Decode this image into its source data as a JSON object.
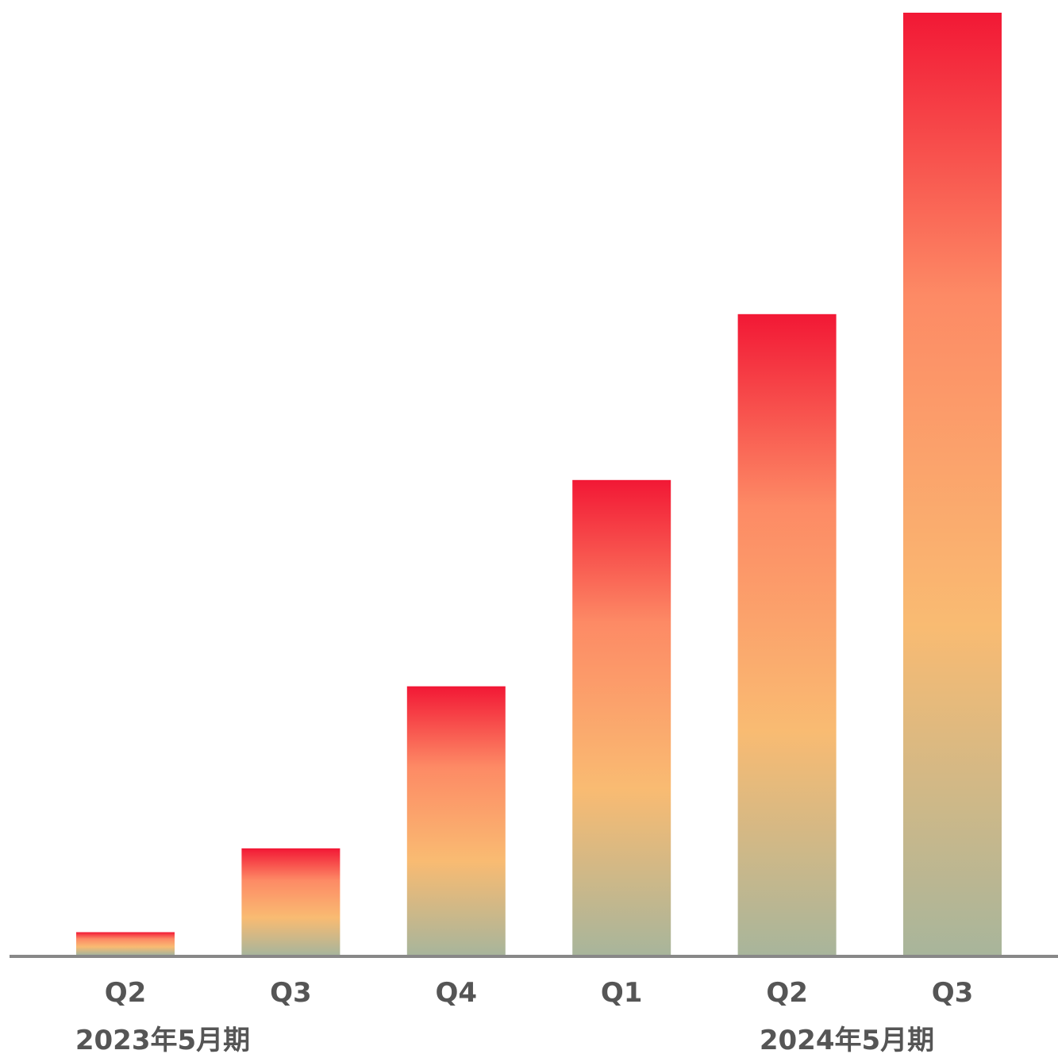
{
  "chart_data": {
    "type": "bar",
    "title": "",
    "xlabel": "",
    "ylabel": "",
    "categories": [
      "Q2",
      "Q3",
      "Q4",
      "Q1",
      "Q2",
      "Q3"
    ],
    "values": [
      2.4,
      11.3,
      28.5,
      50.4,
      68.0,
      100
    ],
    "ylim": [
      0,
      100
    ],
    "grid": false,
    "legend": "none",
    "groups": [
      {
        "label": "2023年5月期",
        "categories": [
          0,
          1,
          2
        ]
      },
      {
        "label": "2024年5月期",
        "categories": [
          3,
          4,
          5
        ]
      }
    ],
    "colors": {
      "bar_top": "#f21835",
      "bar_mid": "#fd8a65",
      "bar_low": "#f9bb72",
      "bar_bottom": "#a8b59b",
      "axis": "#888888",
      "label": "#555555"
    }
  }
}
